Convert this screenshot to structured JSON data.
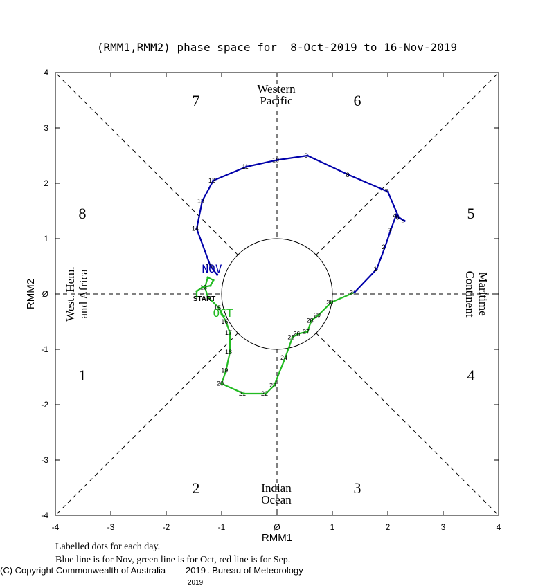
{
  "chart_data": {
    "type": "line",
    "title": "(RMM1,RMM2) phase space for  8-Oct-2019 to 16-Nov-2019",
    "xlabel": "RMM1",
    "ylabel": "RMM2",
    "xlim": [
      -4,
      4
    ],
    "ylim": [
      -4,
      4
    ],
    "x_ticks": [
      "-4",
      "-3",
      "-2",
      "-1",
      "0",
      "1",
      "2",
      "3",
      "4"
    ],
    "y_ticks": [
      "-4",
      "-3",
      "-2",
      "-1",
      "0",
      "1",
      "2",
      "3",
      "4"
    ],
    "phase_numbers": [
      "1",
      "2",
      "3",
      "4",
      "5",
      "6",
      "7",
      "8"
    ],
    "regions": {
      "top": [
        "Western",
        "Pacific"
      ],
      "bottom": [
        "Indian",
        "Ocean"
      ],
      "left": [
        "West. Hem.",
        "and Africa"
      ],
      "right": [
        "Maritime",
        "Continent"
      ]
    },
    "start_label": "START",
    "month_labels": {
      "oct": "OCT",
      "nov": "NOV"
    },
    "colors": {
      "oct": "#22bb22",
      "nov": "#0000aa"
    },
    "series": [
      {
        "name": "Oct",
        "points": [
          {
            "d": "START",
            "x": -1.45,
            "y": -0.05,
            "label": false
          },
          {
            "d": "8",
            "x": -1.45,
            "y": 0.05,
            "label": false
          },
          {
            "d": "9",
            "x": -1.35,
            "y": 0.12,
            "label": false
          },
          {
            "d": "10",
            "x": -1.2,
            "y": 0.15,
            "label": false
          },
          {
            "d": "11",
            "x": -1.15,
            "y": 0.25,
            "label": false
          },
          {
            "d": "12",
            "x": -1.25,
            "y": 0.3,
            "label": false
          },
          {
            "d": "13",
            "x": -1.3,
            "y": 0.12,
            "label": true
          },
          {
            "d": "14",
            "x": -1.25,
            "y": -0.05,
            "label": false
          },
          {
            "d": "15",
            "x": -1.05,
            "y": -0.25,
            "label": true
          },
          {
            "d": "16",
            "x": -0.92,
            "y": -0.5,
            "label": true
          },
          {
            "d": "17",
            "x": -0.85,
            "y": -0.7,
            "label": true
          },
          {
            "d": "18",
            "x": -0.85,
            "y": -1.05,
            "label": true
          },
          {
            "d": "19",
            "x": -0.92,
            "y": -1.38,
            "label": true
          },
          {
            "d": "20",
            "x": -1.0,
            "y": -1.62,
            "label": true
          },
          {
            "d": "21",
            "x": -0.6,
            "y": -1.8,
            "label": true
          },
          {
            "d": "22",
            "x": -0.2,
            "y": -1.8,
            "label": true
          },
          {
            "d": "23",
            "x": -0.05,
            "y": -1.65,
            "label": true
          },
          {
            "d": "24",
            "x": 0.15,
            "y": -1.15,
            "label": true
          },
          {
            "d": "25",
            "x": 0.28,
            "y": -0.78,
            "label": true
          },
          {
            "d": "26",
            "x": 0.38,
            "y": -0.72,
            "label": true
          },
          {
            "d": "27",
            "x": 0.55,
            "y": -0.68,
            "label": true
          },
          {
            "d": "28",
            "x": 0.62,
            "y": -0.48,
            "label": true
          },
          {
            "d": "29",
            "x": 0.75,
            "y": -0.38,
            "label": true
          },
          {
            "d": "30",
            "x": 0.98,
            "y": -0.15,
            "label": true
          },
          {
            "d": "31",
            "x": 1.4,
            "y": 0.03,
            "label": true
          }
        ]
      },
      {
        "name": "Nov",
        "points": [
          {
            "d": "31",
            "x": 1.4,
            "y": 0.03,
            "label": false
          },
          {
            "d": "1",
            "x": 1.8,
            "y": 0.45,
            "label": true
          },
          {
            "d": "2",
            "x": 1.95,
            "y": 0.85,
            "label": true
          },
          {
            "d": "3",
            "x": 2.05,
            "y": 1.15,
            "label": true
          },
          {
            "d": "4",
            "x": 2.15,
            "y": 1.42,
            "label": true
          },
          {
            "d": "5",
            "x": 2.3,
            "y": 1.32,
            "label": true
          },
          {
            "d": "6",
            "x": 2.2,
            "y": 1.38,
            "label": true
          },
          {
            "d": "7",
            "x": 2.0,
            "y": 1.85,
            "label": true
          },
          {
            "d": "8",
            "x": 1.3,
            "y": 2.15,
            "label": true
          },
          {
            "d": "9",
            "x": 0.55,
            "y": 2.5,
            "label": true
          },
          {
            "d": "10",
            "x": 0.0,
            "y": 2.42,
            "label": true
          },
          {
            "d": "11",
            "x": -0.55,
            "y": 2.3,
            "label": true
          },
          {
            "d": "12",
            "x": -1.15,
            "y": 2.05,
            "label": true
          },
          {
            "d": "13",
            "x": -1.35,
            "y": 1.68,
            "label": true
          },
          {
            "d": "14",
            "x": -1.45,
            "y": 1.18,
            "label": true
          },
          {
            "d": "15",
            "x": -1.2,
            "y": 0.5,
            "label": true
          },
          {
            "d": "16",
            "x": -1.08,
            "y": 0.35,
            "label": false
          }
        ]
      }
    ]
  },
  "footer": {
    "note1": "Labelled dots for each day.",
    "note2": "Blue line is for Nov, green line is for Oct, red line is for Sep.",
    "copyright": "(C) Copyright Commonwealth of Australia",
    "year_mid": "2019",
    "bureau": ". Bureau of Meteorology",
    "year_bottom": "2019"
  }
}
